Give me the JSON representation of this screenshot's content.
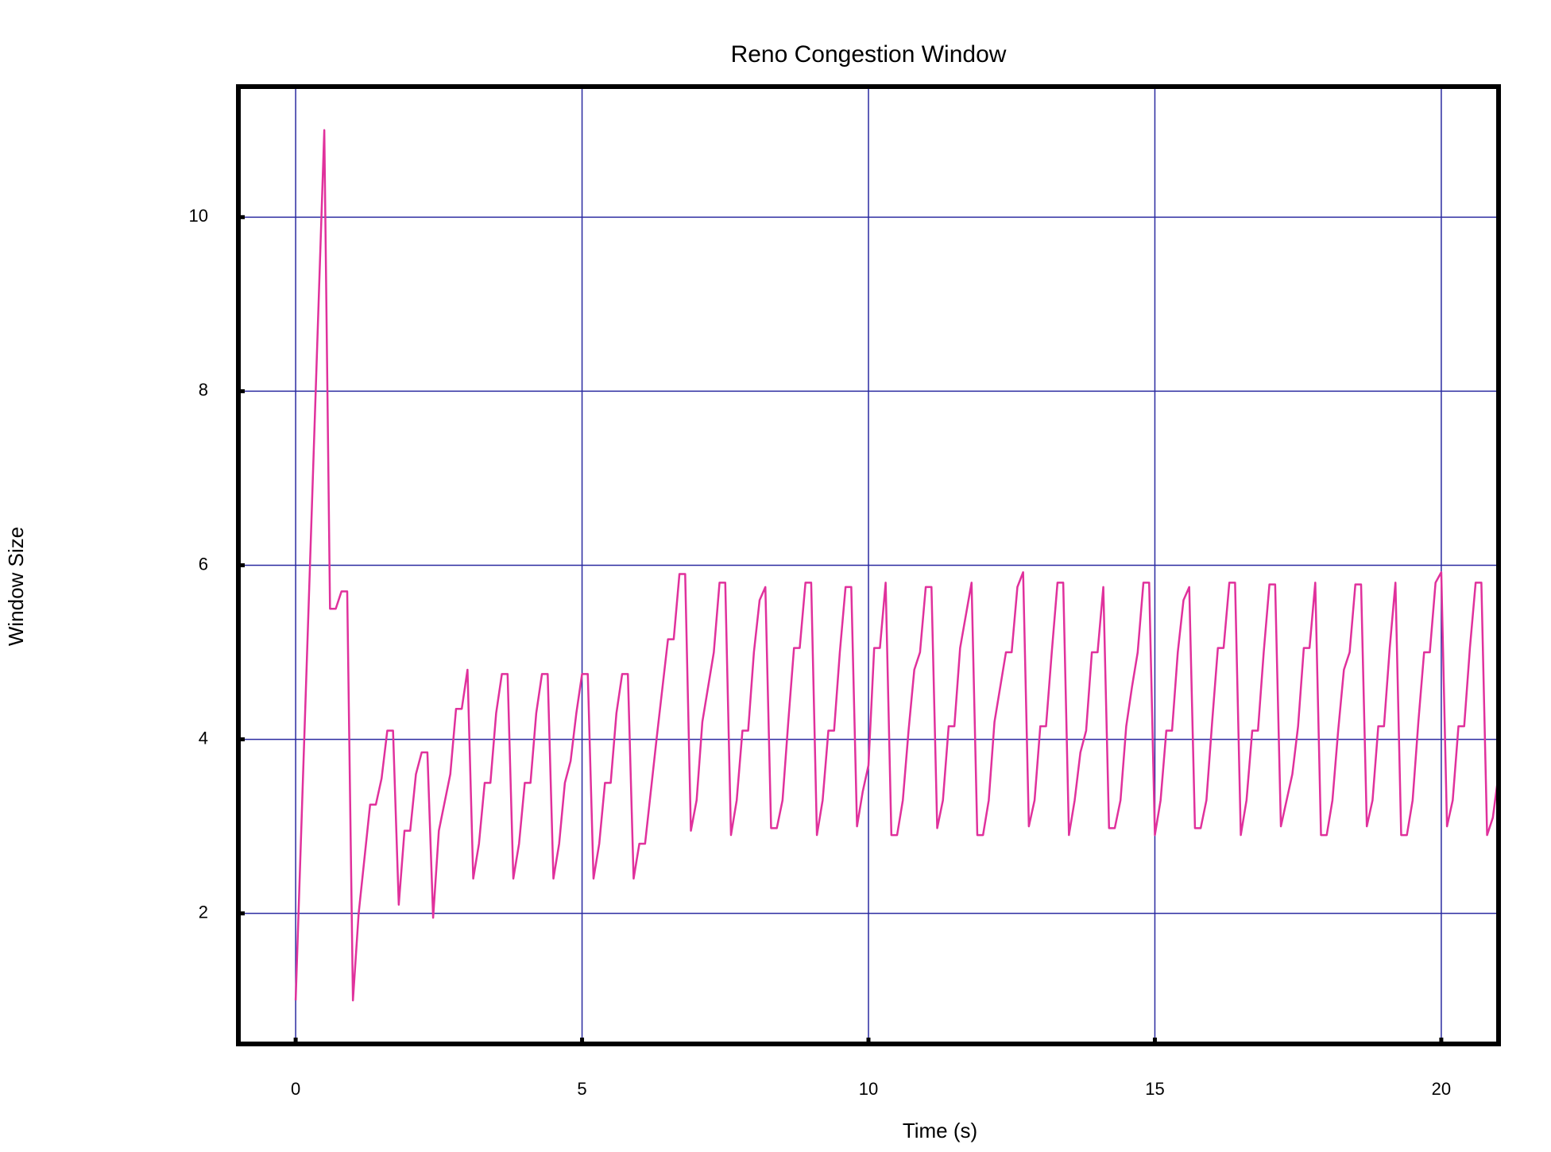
{
  "chart_data": {
    "type": "line",
    "title": "Reno Congestion Window",
    "x_label": "Time (s)",
    "y_label": "Window Size",
    "xlim": [
      -1,
      21
    ],
    "ylim": [
      0.5,
      11.5
    ],
    "xticks": [
      0,
      5,
      10,
      15,
      20
    ],
    "yticks": [
      2,
      4,
      6,
      8,
      10
    ],
    "grid": true,
    "grid_color": "#2a2aa0",
    "x": [
      0,
      0.5,
      0.6,
      0.7,
      0.8,
      0.9,
      1.0,
      1.1,
      1.3,
      1.4,
      1.5,
      1.6,
      1.7,
      1.8,
      1.9,
      2.0,
      2.1,
      2.2,
      2.3,
      2.4,
      2.5,
      2.7,
      2.8,
      2.9,
      3.0,
      3.1,
      3.2,
      3.3,
      3.4,
      3.5,
      3.6,
      3.7,
      3.8,
      3.9,
      4.0,
      4.1,
      4.2,
      4.3,
      4.4,
      4.5,
      4.6,
      4.7,
      4.8,
      4.9,
      5.0,
      5.1,
      5.2,
      5.3,
      5.4,
      5.5,
      5.6,
      5.7,
      5.8,
      5.9,
      6.0,
      6.1,
      6.3,
      6.5,
      6.6,
      6.7,
      6.8,
      6.9,
      7.0,
      7.1,
      7.2,
      7.3,
      7.4,
      7.5,
      7.6,
      7.7,
      7.8,
      7.9,
      8.0,
      8.1,
      8.2,
      8.3,
      8.4,
      8.5,
      8.6,
      8.7,
      8.8,
      8.9,
      9.0,
      9.1,
      9.2,
      9.3,
      9.4,
      9.5,
      9.6,
      9.7,
      9.8,
      9.9,
      10.0,
      10.1,
      10.2,
      10.3,
      10.4,
      10.5,
      10.6,
      10.7,
      10.8,
      10.9,
      11.0,
      11.1,
      11.2,
      11.3,
      11.4,
      11.5,
      11.6,
      11.8,
      11.9,
      12.0,
      12.1,
      12.2,
      12.4,
      12.5,
      12.6,
      12.7,
      12.8,
      12.9,
      13.0,
      13.1,
      13.2,
      13.3,
      13.4,
      13.5,
      13.6,
      13.7,
      13.8,
      13.9,
      14.0,
      14.1,
      14.2,
      14.3,
      14.4,
      14.5,
      14.6,
      14.7,
      14.8,
      14.9,
      15.0,
      15.1,
      15.2,
      15.3,
      15.4,
      15.5,
      15.6,
      15.7,
      15.8,
      15.9,
      16.0,
      16.1,
      16.2,
      16.3,
      16.4,
      16.5,
      16.6,
      16.7,
      16.8,
      16.9,
      17.0,
      17.1,
      17.2,
      17.3,
      17.4,
      17.5,
      17.6,
      17.7,
      17.8,
      17.9,
      18.0,
      18.1,
      18.2,
      18.3,
      18.4,
      18.5,
      18.6,
      18.7,
      18.8,
      18.9,
      19.0,
      19.1,
      19.2,
      19.3,
      19.4,
      19.5,
      19.6,
      19.7,
      19.8,
      19.9,
      20.0,
      20.1,
      20.2,
      20.3,
      20.4,
      20.5,
      20.6,
      20.7,
      20.8,
      20.9,
      21.0
    ],
    "series": [
      {
        "color": "#e0319c",
        "values": [
          1.0,
          11.0,
          5.5,
          5.5,
          5.7,
          5.7,
          1.0,
          2.0,
          3.25,
          3.25,
          3.55,
          4.1,
          4.1,
          2.1,
          2.95,
          2.95,
          3.6,
          3.85,
          3.85,
          1.95,
          2.95,
          3.6,
          4.35,
          4.35,
          4.8,
          2.4,
          2.8,
          3.5,
          3.5,
          4.3,
          4.75,
          4.75,
          2.4,
          2.8,
          3.5,
          3.5,
          4.3,
          4.75,
          4.75,
          2.4,
          2.8,
          3.5,
          3.75,
          4.3,
          4.75,
          4.75,
          2.4,
          2.8,
          3.5,
          3.5,
          4.3,
          4.75,
          4.75,
          2.4,
          2.8,
          2.8,
          4.0,
          5.15,
          5.15,
          5.9,
          5.9,
          2.95,
          3.3,
          4.2,
          4.6,
          5.0,
          5.8,
          5.8,
          2.9,
          3.3,
          4.1,
          4.1,
          5.0,
          5.6,
          5.75,
          2.98,
          2.98,
          3.3,
          4.2,
          5.05,
          5.05,
          5.8,
          5.8,
          2.9,
          3.3,
          4.1,
          4.1,
          5.0,
          5.75,
          5.75,
          3.0,
          3.4,
          3.7,
          5.05,
          5.05,
          5.8,
          2.9,
          2.9,
          3.3,
          4.1,
          4.8,
          5.0,
          5.75,
          5.75,
          2.98,
          3.3,
          4.15,
          4.15,
          5.05,
          5.8,
          2.9,
          2.9,
          3.3,
          4.2,
          5.0,
          5.0,
          5.75,
          5.92,
          3.0,
          3.3,
          4.15,
          4.15,
          5.0,
          5.8,
          5.8,
          2.9,
          3.3,
          3.85,
          4.1,
          5.0,
          5.0,
          5.75,
          2.98,
          2.98,
          3.3,
          4.15,
          4.6,
          5.0,
          5.8,
          5.8,
          2.9,
          3.3,
          4.1,
          4.1,
          5.0,
          5.6,
          5.75,
          2.98,
          2.98,
          3.3,
          4.2,
          5.05,
          5.05,
          5.8,
          5.8,
          2.9,
          3.3,
          4.1,
          4.1,
          5.0,
          5.78,
          5.78,
          3.0,
          3.3,
          3.6,
          4.15,
          5.05,
          5.05,
          5.8,
          2.9,
          2.9,
          3.3,
          4.1,
          4.8,
          5.0,
          5.78,
          5.78,
          3.0,
          3.3,
          4.15,
          4.15,
          5.05,
          5.8,
          2.9,
          2.9,
          3.3,
          4.2,
          5.0,
          5.0,
          5.8,
          5.92,
          3.0,
          3.3,
          4.15,
          4.15,
          5.05,
          5.8,
          5.8,
          2.9,
          3.1,
          3.6
        ]
      }
    ]
  }
}
